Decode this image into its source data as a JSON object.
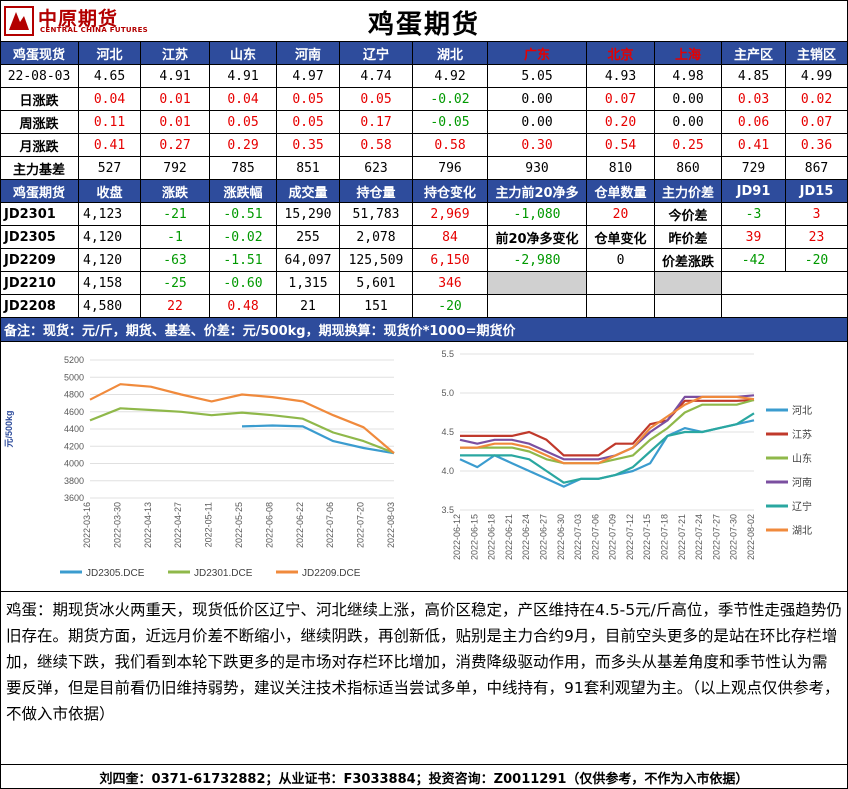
{
  "brand": {
    "name_cn": "中原期货",
    "name_en": "CENTRAL CHINA FUTURES"
  },
  "title": "鸡蛋期货",
  "spot": {
    "header_label": "鸡蛋现货",
    "regions": [
      "河北",
      "江苏",
      "山东",
      "河南",
      "辽宁",
      "湖北",
      "广东",
      "北京",
      "上海",
      "主产区",
      "主销区"
    ],
    "date_label": "22-08-03",
    "prices": [
      "4.65",
      "4.91",
      "4.91",
      "4.97",
      "4.74",
      "4.92",
      "5.05",
      "4.93",
      "4.98",
      "4.85",
      "4.99"
    ],
    "rows": [
      {
        "label": "日涨跌",
        "values": [
          "0.04",
          "0.01",
          "0.04",
          "0.05",
          "0.05",
          "-0.02",
          "0.00",
          "0.07",
          "0.00",
          "0.03",
          "0.02"
        ]
      },
      {
        "label": "周涨跌",
        "values": [
          "0.11",
          "0.01",
          "0.05",
          "0.05",
          "0.17",
          "-0.05",
          "0.00",
          "0.20",
          "0.00",
          "0.06",
          "0.07"
        ]
      },
      {
        "label": "月涨跌",
        "values": [
          "0.41",
          "0.27",
          "0.29",
          "0.35",
          "0.58",
          "0.58",
          "0.30",
          "0.54",
          "0.25",
          "0.41",
          "0.36"
        ]
      }
    ],
    "basis_label": "主力基差",
    "basis": [
      "527",
      "792",
      "785",
      "851",
      "623",
      "796",
      "930",
      "810",
      "860",
      "729",
      "867"
    ]
  },
  "futures": {
    "headers": [
      "鸡蛋期货",
      "收盘",
      "涨跌",
      "涨跌幅",
      "成交量",
      "持仓量",
      "持仓变化",
      "主力前20净多",
      "仓单数量",
      "主力价差",
      "JD91",
      "JD15"
    ],
    "rows": [
      {
        "contract": "JD2301",
        "close": "4,123",
        "chg": "-21",
        "pct": "-0.51",
        "volume": "15,290",
        "oi": "51,783",
        "oi_chg": "2,969"
      },
      {
        "contract": "JD2305",
        "close": "4,120",
        "chg": "-1",
        "pct": "-0.02",
        "volume": "255",
        "oi": "2,078",
        "oi_chg": "84"
      },
      {
        "contract": "JD2209",
        "close": "4,120",
        "chg": "-63",
        "pct": "-1.51",
        "volume": "64,097",
        "oi": "125,509",
        "oi_chg": "6,150"
      },
      {
        "contract": "JD2210",
        "close": "4,158",
        "chg": "-25",
        "pct": "-0.60",
        "volume": "1,315",
        "oi": "5,601",
        "oi_chg": "346"
      },
      {
        "contract": "JD2208",
        "close": "4,580",
        "chg": "22",
        "pct": "0.48",
        "volume": "21",
        "oi": "151",
        "oi_chg": "-20"
      }
    ],
    "net_long": "-1,080",
    "warrant": "20",
    "net_long_chg_label": "前20净多变化",
    "warrant_chg_label": "仓单变化",
    "net_long_chg": "-2,980",
    "warrant_chg": "0",
    "spread_labels": [
      "今价差",
      "昨价差",
      "价差涨跌"
    ],
    "jd91": [
      "-3",
      "39",
      "-42"
    ],
    "jd15": [
      "3",
      "23",
      "-20"
    ]
  },
  "note": "备注：现货：元/斤，期货、基差、价差：元/500kg，期现换算：现货价*1000=期货价",
  "chart_data": [
    {
      "type": "line",
      "ylabel": "元/500kg",
      "ylim": [
        3600,
        5200
      ],
      "yticks": [
        3600,
        3800,
        4000,
        4200,
        4400,
        4600,
        4800,
        5000,
        5200
      ],
      "x": [
        "2022-03-16",
        "2022-03-30",
        "2022-04-13",
        "2022-04-27",
        "2022-05-11",
        "2022-05-25",
        "2022-06-08",
        "2022-06-22",
        "2022-07-06",
        "2022-07-20",
        "2022-08-03"
      ],
      "series": [
        {
          "name": "JD2305.DCE",
          "color": "#3b9ccf",
          "values": [
            null,
            null,
            null,
            null,
            null,
            4430,
            4440,
            4430,
            4260,
            4180,
            4120
          ]
        },
        {
          "name": "JD2301.DCE",
          "color": "#8fb84a",
          "values": [
            4500,
            4640,
            4620,
            4600,
            4560,
            4590,
            4560,
            4520,
            4360,
            4260,
            4123
          ]
        },
        {
          "name": "JD2209.DCE",
          "color": "#f08a3c",
          "values": [
            4740,
            4920,
            4890,
            4800,
            4720,
            4800,
            4770,
            4720,
            4560,
            4420,
            4120
          ]
        }
      ]
    },
    {
      "type": "line",
      "ylim": [
        3.5,
        5.5
      ],
      "yticks": [
        3.5,
        4.0,
        4.5,
        5.0,
        5.5
      ],
      "x": [
        "2022-06-12",
        "2022-06-15",
        "2022-06-18",
        "2022-06-21",
        "2022-06-24",
        "2022-06-27",
        "2022-06-30",
        "2022-07-03",
        "2022-07-06",
        "2022-07-09",
        "2022-07-12",
        "2022-07-15",
        "2022-07-18",
        "2022-07-21",
        "2022-07-24",
        "2022-07-27",
        "2022-07-30",
        "2022-08-02"
      ],
      "series": [
        {
          "name": "河北",
          "color": "#3b9ccf",
          "values": [
            4.15,
            4.05,
            4.2,
            4.1,
            4.0,
            3.9,
            3.8,
            3.9,
            3.9,
            3.95,
            4.0,
            4.1,
            4.45,
            4.55,
            4.5,
            4.55,
            4.6,
            4.65
          ]
        },
        {
          "name": "江苏",
          "color": "#c0392b",
          "values": [
            4.45,
            4.45,
            4.45,
            4.45,
            4.5,
            4.4,
            4.2,
            4.2,
            4.2,
            4.35,
            4.35,
            4.6,
            4.65,
            4.9,
            4.9,
            4.9,
            4.9,
            4.91
          ]
        },
        {
          "name": "山东",
          "color": "#8fb84a",
          "values": [
            4.3,
            4.3,
            4.3,
            4.3,
            4.25,
            4.15,
            4.1,
            4.1,
            4.1,
            4.15,
            4.2,
            4.4,
            4.55,
            4.75,
            4.85,
            4.85,
            4.85,
            4.91
          ]
        },
        {
          "name": "河南",
          "color": "#7b4fa0",
          "values": [
            4.4,
            4.35,
            4.4,
            4.4,
            4.35,
            4.25,
            4.15,
            4.15,
            4.15,
            4.2,
            4.3,
            4.5,
            4.65,
            4.95,
            4.95,
            4.95,
            4.95,
            4.97
          ]
        },
        {
          "name": "辽宁",
          "color": "#2aa7a0",
          "values": [
            4.2,
            4.2,
            4.2,
            4.2,
            4.15,
            4.0,
            3.85,
            3.9,
            3.9,
            3.95,
            4.05,
            4.25,
            4.45,
            4.5,
            4.5,
            4.55,
            4.6,
            4.74
          ]
        },
        {
          "name": "湖北",
          "color": "#f08a3c",
          "values": [
            4.3,
            4.3,
            4.35,
            4.35,
            4.3,
            4.2,
            4.1,
            4.1,
            4.1,
            4.2,
            4.3,
            4.55,
            4.7,
            4.85,
            4.95,
            4.95,
            4.95,
            4.92
          ]
        }
      ]
    }
  ],
  "analysis": "鸡蛋：期现货冰火两重天，现货低价区辽宁、河北继续上涨，高价区稳定，产区维持在4.5-5元/斤高位，季节性走强趋势仍旧存在。期货方面，近远月价差不断缩小，继续阴跌，再创新低，贴别是主力合约9月，目前空头更多的是站在环比存栏增加，继续下跌，我们看到本轮下跌更多的是市场对存栏环比增加，消费降级驱动作用，而多头从基差角度和季节性认为需要反弹，但是目前看仍旧维持弱势，建议关注技术指标适当尝试多单，中线持有，91套利观望为主。（以上观点仅供参考，不做入市依据）",
  "footer": "刘四奎：0371-61732882；从业证书：F3033884；投资咨询：Z0011291（仅供参考，不作为入市依据）"
}
